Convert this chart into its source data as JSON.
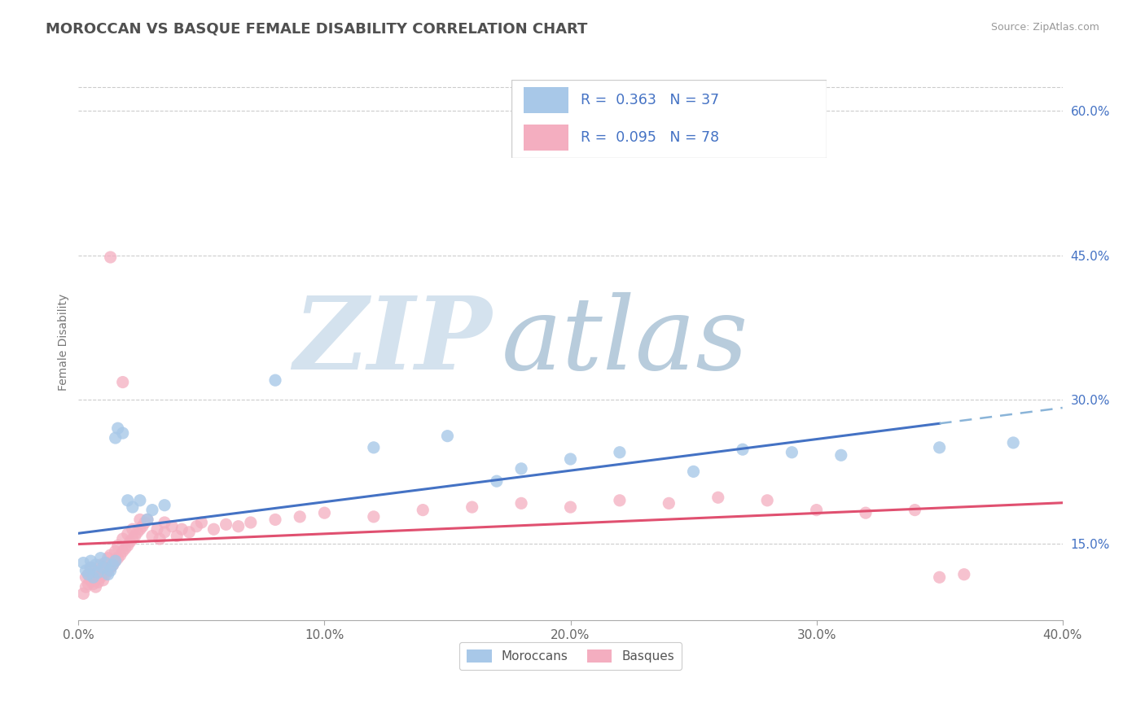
{
  "title": "MOROCCAN VS BASQUE FEMALE DISABILITY CORRELATION CHART",
  "source": "Source: ZipAtlas.com",
  "ylabel": "Female Disability",
  "xlim": [
    0.0,
    0.4
  ],
  "ylim": [
    0.07,
    0.65
  ],
  "xticks": [
    0.0,
    0.1,
    0.2,
    0.3,
    0.4
  ],
  "xticklabels": [
    "0.0%",
    "10.0%",
    "20.0%",
    "30.0%",
    "40.0%"
  ],
  "yticks": [
    0.15,
    0.3,
    0.45,
    0.6
  ],
  "yticklabels": [
    "15.0%",
    "30.0%",
    "45.0%",
    "60.0%"
  ],
  "moroccan_R": 0.363,
  "moroccan_N": 37,
  "basque_R": 0.095,
  "basque_N": 78,
  "moroccan_color": "#a8c8e8",
  "basque_color": "#f4aec0",
  "moroccan_line_color": "#4472c4",
  "basque_line_color": "#e05070",
  "dashed_line_color": "#8ab4d8",
  "legend_color": "#4472c4",
  "watermark_zip": "ZIP",
  "watermark_atlas": "atlas",
  "watermark_color_zip": "#c8d8e8",
  "watermark_color_atlas": "#a8c0d8",
  "background_color": "#ffffff",
  "grid_color": "#cccccc",
  "title_color": "#505050",
  "moroccan_scatter": [
    [
      0.002,
      0.13
    ],
    [
      0.003,
      0.122
    ],
    [
      0.004,
      0.118
    ],
    [
      0.005,
      0.125
    ],
    [
      0.005,
      0.132
    ],
    [
      0.006,
      0.115
    ],
    [
      0.007,
      0.128
    ],
    [
      0.008,
      0.12
    ],
    [
      0.009,
      0.135
    ],
    [
      0.01,
      0.125
    ],
    [
      0.011,
      0.13
    ],
    [
      0.012,
      0.118
    ],
    [
      0.013,
      0.122
    ],
    [
      0.014,
      0.128
    ],
    [
      0.015,
      0.132
    ],
    [
      0.015,
      0.26
    ],
    [
      0.016,
      0.27
    ],
    [
      0.018,
      0.265
    ],
    [
      0.02,
      0.195
    ],
    [
      0.022,
      0.188
    ],
    [
      0.025,
      0.195
    ],
    [
      0.028,
      0.175
    ],
    [
      0.03,
      0.185
    ],
    [
      0.035,
      0.19
    ],
    [
      0.08,
      0.32
    ],
    [
      0.12,
      0.25
    ],
    [
      0.15,
      0.262
    ],
    [
      0.17,
      0.215
    ],
    [
      0.18,
      0.228
    ],
    [
      0.2,
      0.238
    ],
    [
      0.22,
      0.245
    ],
    [
      0.25,
      0.225
    ],
    [
      0.27,
      0.248
    ],
    [
      0.29,
      0.245
    ],
    [
      0.31,
      0.242
    ],
    [
      0.35,
      0.25
    ],
    [
      0.38,
      0.255
    ]
  ],
  "basque_scatter": [
    [
      0.002,
      0.098
    ],
    [
      0.003,
      0.105
    ],
    [
      0.003,
      0.115
    ],
    [
      0.004,
      0.108
    ],
    [
      0.004,
      0.118
    ],
    [
      0.005,
      0.112
    ],
    [
      0.005,
      0.125
    ],
    [
      0.006,
      0.108
    ],
    [
      0.006,
      0.118
    ],
    [
      0.007,
      0.105
    ],
    [
      0.007,
      0.115
    ],
    [
      0.008,
      0.11
    ],
    [
      0.008,
      0.122
    ],
    [
      0.009,
      0.115
    ],
    [
      0.009,
      0.128
    ],
    [
      0.01,
      0.112
    ],
    [
      0.01,
      0.125
    ],
    [
      0.011,
      0.118
    ],
    [
      0.011,
      0.13
    ],
    [
      0.012,
      0.122
    ],
    [
      0.012,
      0.135
    ],
    [
      0.013,
      0.125
    ],
    [
      0.013,
      0.138
    ],
    [
      0.014,
      0.128
    ],
    [
      0.015,
      0.132
    ],
    [
      0.015,
      0.142
    ],
    [
      0.016,
      0.135
    ],
    [
      0.016,
      0.148
    ],
    [
      0.017,
      0.138
    ],
    [
      0.018,
      0.142
    ],
    [
      0.018,
      0.155
    ],
    [
      0.019,
      0.145
    ],
    [
      0.02,
      0.148
    ],
    [
      0.02,
      0.16
    ],
    [
      0.021,
      0.152
    ],
    [
      0.022,
      0.155
    ],
    [
      0.022,
      0.165
    ],
    [
      0.023,
      0.158
    ],
    [
      0.024,
      0.162
    ],
    [
      0.025,
      0.165
    ],
    [
      0.025,
      0.175
    ],
    [
      0.026,
      0.168
    ],
    [
      0.027,
      0.172
    ],
    [
      0.028,
      0.175
    ],
    [
      0.03,
      0.158
    ],
    [
      0.032,
      0.165
    ],
    [
      0.033,
      0.155
    ],
    [
      0.035,
      0.162
    ],
    [
      0.035,
      0.172
    ],
    [
      0.038,
      0.168
    ],
    [
      0.04,
      0.158
    ],
    [
      0.042,
      0.165
    ],
    [
      0.045,
      0.162
    ],
    [
      0.048,
      0.168
    ],
    [
      0.05,
      0.172
    ],
    [
      0.055,
      0.165
    ],
    [
      0.06,
      0.17
    ],
    [
      0.065,
      0.168
    ],
    [
      0.07,
      0.172
    ],
    [
      0.013,
      0.448
    ],
    [
      0.018,
      0.318
    ],
    [
      0.08,
      0.175
    ],
    [
      0.09,
      0.178
    ],
    [
      0.1,
      0.182
    ],
    [
      0.12,
      0.178
    ],
    [
      0.14,
      0.185
    ],
    [
      0.16,
      0.188
    ],
    [
      0.18,
      0.192
    ],
    [
      0.2,
      0.188
    ],
    [
      0.22,
      0.195
    ],
    [
      0.24,
      0.192
    ],
    [
      0.26,
      0.198
    ],
    [
      0.28,
      0.195
    ],
    [
      0.3,
      0.185
    ],
    [
      0.32,
      0.182
    ],
    [
      0.34,
      0.185
    ],
    [
      0.35,
      0.115
    ],
    [
      0.36,
      0.118
    ]
  ]
}
